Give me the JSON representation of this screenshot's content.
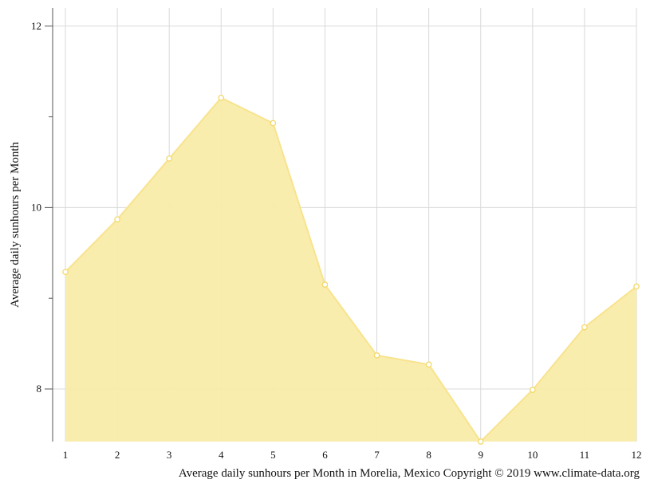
{
  "chart_data": {
    "type": "area",
    "title": "",
    "xlabel": "",
    "ylabel": "Average daily sunhours per Month",
    "caption": "Average daily sunhours per Month in Morelia, Mexico Copyright © 2019 www.climate-data.org",
    "categories": [
      "1",
      "2",
      "3",
      "4",
      "5",
      "6",
      "7",
      "8",
      "9",
      "10",
      "11",
      "12"
    ],
    "x": [
      1,
      2,
      3,
      4,
      5,
      6,
      7,
      8,
      9,
      10,
      11,
      12
    ],
    "series": [
      {
        "values": [
          9.29,
          9.87,
          10.54,
          11.21,
          10.93,
          9.15,
          8.37,
          8.27,
          7.42,
          7.99,
          8.68,
          9.13
        ]
      }
    ],
    "ylim": [
      7.42,
      12.2
    ],
    "xlim": [
      1,
      12
    ],
    "y_ticks": [
      8,
      10,
      12
    ],
    "y_tick_labels": [
      "8",
      "10",
      "12"
    ],
    "y_minor_ticks": [
      9,
      11
    ],
    "grid": true,
    "legend": "none",
    "colors": {
      "area_fill": "#f9ecaa",
      "line": "#f8e38d",
      "marker_fill": "#ffffff",
      "marker_stroke": "#f3d96a",
      "grid": "#d9d9d9",
      "axis": "#555555"
    }
  }
}
